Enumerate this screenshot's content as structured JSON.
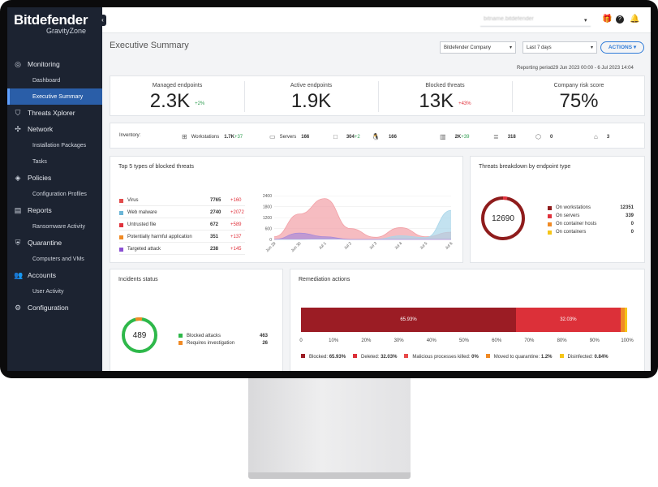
{
  "brand": {
    "name": "Bitdefender",
    "product": "GravityZone"
  },
  "sidebar": {
    "items": [
      {
        "label": "Monitoring",
        "icon": "monitoring-icon",
        "type": "main"
      },
      {
        "label": "Dashboard",
        "type": "sub"
      },
      {
        "label": "Executive Summary",
        "type": "sub",
        "active": true
      },
      {
        "label": "Threats Xplorer",
        "icon": "shield-icon",
        "type": "main"
      },
      {
        "label": "Network",
        "icon": "network-icon",
        "type": "main"
      },
      {
        "label": "Installation Packages",
        "type": "sub"
      },
      {
        "label": "Tasks",
        "type": "sub"
      },
      {
        "label": "Policies",
        "icon": "policy-icon",
        "type": "main"
      },
      {
        "label": "Configuration Profiles",
        "type": "sub"
      },
      {
        "label": "Reports",
        "icon": "reports-icon",
        "type": "main"
      },
      {
        "label": "Ransomware Activity",
        "type": "sub"
      },
      {
        "label": "Quarantine",
        "icon": "quarantine-icon",
        "type": "main"
      },
      {
        "label": "Computers and VMs",
        "type": "sub"
      },
      {
        "label": "Accounts",
        "icon": "accounts-icon",
        "type": "main"
      },
      {
        "label": "User Activity",
        "type": "sub"
      },
      {
        "label": "Configuration",
        "icon": "gear-icon",
        "type": "main"
      }
    ]
  },
  "topbar": {
    "user": "bitname.bitdefender"
  },
  "page": {
    "title": "Executive Summary",
    "company_filter": "Bitdefender Company",
    "period_filter": "Last 7 days",
    "actions_label": "ACTIONS",
    "reporting_period": "Reporting period29 Jun 2023 00:00 - 6 Jul 2023 14:04"
  },
  "kpis": [
    {
      "label": "Managed endpoints",
      "value": "2.3K",
      "delta": "+2%",
      "delta_color": "#2e9d4f"
    },
    {
      "label": "Active endpoints",
      "value": "1.9K",
      "delta": "",
      "delta_color": "#2e9d4f"
    },
    {
      "label": "Blocked threats",
      "value": "13K",
      "delta": "+43%",
      "delta_color": "#e0323c"
    },
    {
      "label": "Company risk score",
      "value": "75%",
      "delta": "",
      "delta_color": "#2e9d4f"
    }
  ],
  "inventory": {
    "label": "Inventory:",
    "items": [
      {
        "name": "Workstations",
        "count": "1.7K",
        "delta": "+37",
        "icon": "windows-icon"
      },
      {
        "name": "Servers",
        "count": "166",
        "delta": "",
        "icon": "server-icon"
      },
      {
        "name": "",
        "count": "304",
        "delta": "+2",
        "icon": "apple-icon"
      },
      {
        "name": "",
        "count": "166",
        "delta": "",
        "icon": "linux-icon"
      },
      {
        "name": "",
        "count": "2K",
        "delta": "+39",
        "icon": "vm-icon"
      },
      {
        "name": "",
        "count": "318",
        "delta": "",
        "icon": "storage-icon"
      },
      {
        "name": "",
        "count": "0",
        "delta": "",
        "icon": "container-icon"
      },
      {
        "name": "",
        "count": "3",
        "delta": "",
        "icon": "network-device-icon"
      }
    ]
  },
  "top_threats": {
    "title": "Top 5 types of blocked threats",
    "rows": [
      {
        "name": "Virus",
        "count": "7765",
        "delta": "+160",
        "color": "#e24b4b"
      },
      {
        "name": "Web malware",
        "count": "2740",
        "delta": "+2072",
        "color": "#6bb5d6"
      },
      {
        "name": "Untrusted file",
        "count": "672",
        "delta": "+589",
        "color": "#e0323c"
      },
      {
        "name": "Potentially harmful application",
        "count": "351",
        "delta": "+137",
        "color": "#f08a25"
      },
      {
        "name": "Targeted attack",
        "count": "238",
        "delta": "+145",
        "color": "#8a4fd3"
      }
    ]
  },
  "chart_data": {
    "type": "area",
    "x": [
      "Jun 29",
      "Jun 30",
      "Jul 1",
      "Jul 2",
      "Jul 3",
      "Jul 4",
      "Jul 5",
      "Jul 6"
    ],
    "yticks": [
      0,
      600,
      1200,
      1800,
      2400
    ],
    "ylim": [
      0,
      2500
    ],
    "series": [
      {
        "name": "Virus",
        "color": "#f2a0a6",
        "values": [
          150,
          1400,
          2250,
          600,
          120,
          650,
          150,
          400
        ]
      },
      {
        "name": "Web malware",
        "color": "#a9d6ea",
        "values": [
          0,
          0,
          50,
          0,
          0,
          200,
          100,
          1600
        ]
      },
      {
        "name": "Targeted attack",
        "color": "#a98ad8",
        "values": [
          0,
          350,
          150,
          0,
          0,
          0,
          0,
          0
        ]
      }
    ]
  },
  "breakdown": {
    "title": "Threats breakdown by endpoint type",
    "total": "12690",
    "rows": [
      {
        "name": "On workstations",
        "count": "12351",
        "color": "#8f1c1c"
      },
      {
        "name": "On servers",
        "count": "339",
        "color": "#e0323c"
      },
      {
        "name": "On container hosts",
        "count": "0",
        "color": "#f08a25"
      },
      {
        "name": "On containers",
        "count": "0",
        "color": "#f5c518"
      }
    ]
  },
  "incidents": {
    "title": "Incidents status",
    "total": "489",
    "rows": [
      {
        "name": "Blocked attacks",
        "count": "463",
        "color": "#2eb84a"
      },
      {
        "name": "Requires investigation",
        "count": "26",
        "color": "#f08a25"
      }
    ]
  },
  "remediation": {
    "title": "Remediation actions",
    "ticks": [
      "0",
      "10%",
      "20%",
      "30%",
      "40%",
      "50%",
      "60%",
      "70%",
      "80%",
      "90%",
      "100%"
    ],
    "segments": [
      {
        "name": "Blocked:",
        "pct": 65.93,
        "label": "65.93%",
        "value_text": "65.93%",
        "color": "#9b1c24"
      },
      {
        "name": "Deleted:",
        "pct": 32.03,
        "label": "32.03%",
        "value_text": "32.03%",
        "color": "#dc3039"
      },
      {
        "name": "Malicious processes killed:",
        "pct": 0,
        "label": "",
        "value_text": "0%",
        "color": "#e84a4a"
      },
      {
        "name": "Moved to quarantine:",
        "pct": 1.2,
        "label": "",
        "value_text": "1.2%",
        "color": "#f08a25"
      },
      {
        "name": "Disinfected:",
        "pct": 0.84,
        "label": "",
        "value_text": "0.84%",
        "color": "#f5c518"
      }
    ]
  }
}
